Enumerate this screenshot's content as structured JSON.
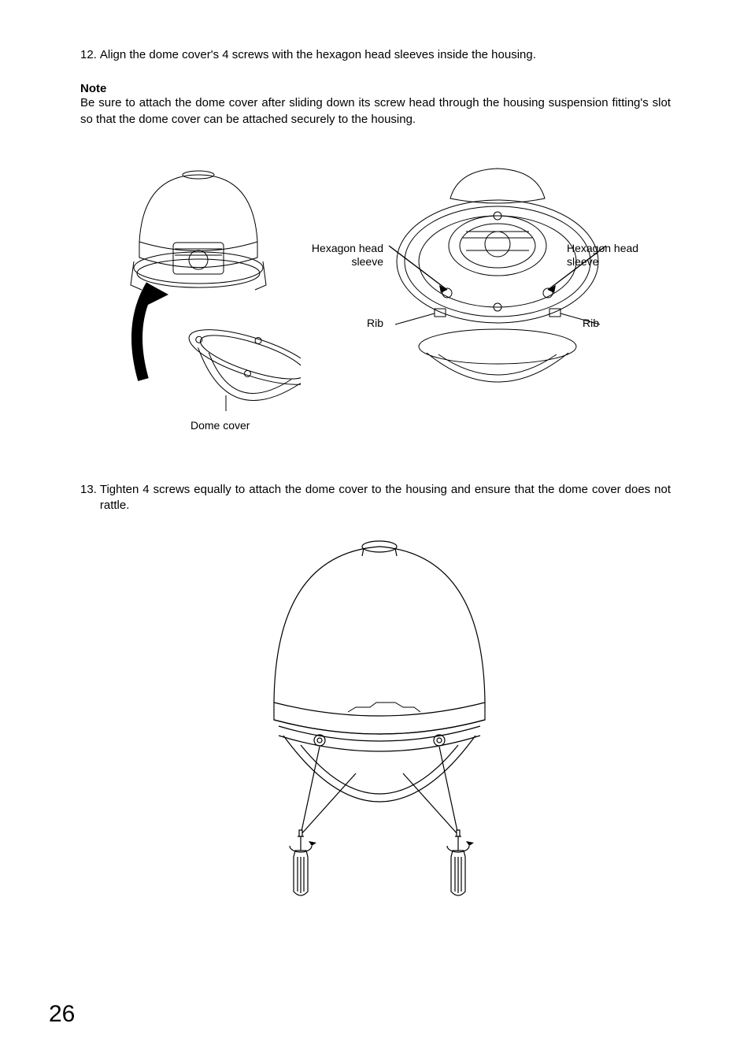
{
  "steps": {
    "s12": {
      "num": "12.",
      "text": "Align the dome cover's 4 screws with the hexagon head sleeves inside the housing."
    },
    "s13": {
      "num": "13.",
      "text": "Tighten 4 screws equally to attach the dome cover to the housing and ensure that the dome cover does not rattle."
    }
  },
  "note": {
    "heading": "Note",
    "body": "Be sure to attach the dome cover after sliding down its screw head through the housing suspension fitting's slot so that the dome cover can be attached securely to the housing."
  },
  "callouts": {
    "hex_left": "Hexagon head\nsleeve",
    "hex_right": "Hexagon head\nsleeve",
    "rib_left": "Rib",
    "rib_right": "Rib",
    "dome_cover": "Dome cover"
  },
  "pageNumber": "26",
  "style": {
    "text_color": "#000000",
    "background": "#ffffff",
    "body_fontsize": 15,
    "callout_fontsize": 14,
    "pagenum_fontsize": 30,
    "line_stroke": "#000000",
    "line_width_thin": 1,
    "line_width_med": 1.4
  }
}
